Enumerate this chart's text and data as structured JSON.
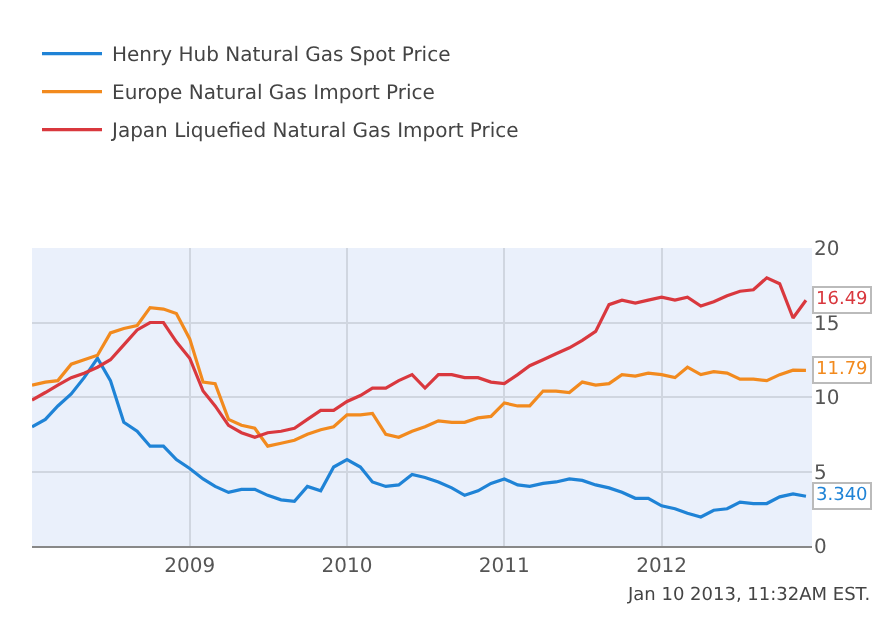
{
  "chart_data": {
    "type": "line",
    "x": [
      "2008-01",
      "2008-02",
      "2008-03",
      "2008-04",
      "2008-05",
      "2008-06",
      "2008-07",
      "2008-08",
      "2008-09",
      "2008-10",
      "2008-11",
      "2008-12",
      "2009-01",
      "2009-02",
      "2009-03",
      "2009-04",
      "2009-05",
      "2009-06",
      "2009-07",
      "2009-08",
      "2009-09",
      "2009-10",
      "2009-11",
      "2009-12",
      "2010-01",
      "2010-02",
      "2010-03",
      "2010-04",
      "2010-05",
      "2010-06",
      "2010-07",
      "2010-08",
      "2010-09",
      "2010-10",
      "2010-11",
      "2010-12",
      "2011-01",
      "2011-02",
      "2011-03",
      "2011-04",
      "2011-05",
      "2011-06",
      "2011-07",
      "2011-08",
      "2011-09",
      "2011-10",
      "2011-11",
      "2011-12",
      "2012-01",
      "2012-02",
      "2012-03",
      "2012-04",
      "2012-05",
      "2012-06",
      "2012-07",
      "2012-08",
      "2012-09",
      "2012-10",
      "2012-11",
      "2012-12"
    ],
    "series": [
      {
        "name": "Henry Hub Natural Gas Spot Price",
        "color": "#1f83d6",
        "values": [
          8.0,
          8.5,
          9.4,
          10.2,
          11.3,
          12.6,
          11.1,
          8.3,
          7.7,
          6.7,
          6.7,
          5.8,
          5.2,
          4.5,
          4.0,
          3.6,
          3.8,
          3.8,
          3.4,
          3.1,
          3.0,
          4.0,
          3.7,
          5.3,
          5.8,
          5.3,
          4.3,
          4.0,
          4.1,
          4.8,
          4.6,
          4.3,
          3.9,
          3.4,
          3.7,
          4.2,
          4.5,
          4.1,
          4.0,
          4.2,
          4.3,
          4.5,
          4.4,
          4.1,
          3.9,
          3.6,
          3.2,
          3.2,
          2.7,
          2.5,
          2.2,
          1.95,
          2.4,
          2.5,
          2.95,
          2.85,
          2.85,
          3.3,
          3.5,
          3.34
        ],
        "value_labels": [
          null,
          null,
          null,
          null,
          null,
          null,
          null,
          null,
          null,
          null,
          null,
          null,
          null,
          null,
          null,
          null,
          null,
          null,
          null,
          null,
          null,
          null,
          null,
          null,
          null,
          null,
          null,
          null,
          null,
          null,
          null,
          null,
          null,
          null,
          null,
          null,
          null,
          null,
          null,
          null,
          null,
          null,
          null,
          null,
          null,
          null,
          null,
          null,
          null,
          null,
          null,
          null,
          null,
          null,
          null,
          null,
          null,
          null,
          null,
          "3.340"
        ]
      },
      {
        "name": "Europe Natural Gas Import Price",
        "color": "#f28a1e",
        "values": [
          10.8,
          11.0,
          11.1,
          12.2,
          12.5,
          12.8,
          14.3,
          14.6,
          14.8,
          16.0,
          15.9,
          15.6,
          13.9,
          11.0,
          10.9,
          8.5,
          8.1,
          7.9,
          6.7,
          6.9,
          7.1,
          7.5,
          7.8,
          8.0,
          8.8,
          8.8,
          8.9,
          7.5,
          7.3,
          7.7,
          8.0,
          8.4,
          8.3,
          8.3,
          8.6,
          8.7,
          9.6,
          9.4,
          9.4,
          10.4,
          10.4,
          10.3,
          11.0,
          10.8,
          10.9,
          11.5,
          11.4,
          11.6,
          11.5,
          11.3,
          12.0,
          11.5,
          11.7,
          11.6,
          11.2,
          11.2,
          11.1,
          11.5,
          11.8,
          11.79
        ],
        "value_labels": [
          null,
          null,
          null,
          null,
          null,
          null,
          null,
          null,
          null,
          null,
          null,
          null,
          null,
          null,
          null,
          null,
          null,
          null,
          null,
          null,
          null,
          null,
          null,
          null,
          null,
          null,
          null,
          null,
          null,
          null,
          null,
          null,
          null,
          null,
          null,
          null,
          null,
          null,
          null,
          null,
          null,
          null,
          null,
          null,
          null,
          null,
          null,
          null,
          null,
          null,
          null,
          null,
          null,
          null,
          null,
          null,
          null,
          null,
          null,
          "11.79"
        ]
      },
      {
        "name": "Japan Liquefied Natural Gas Import Price",
        "color": "#d9383e",
        "values": [
          9.8,
          10.3,
          10.8,
          11.3,
          11.6,
          12.0,
          12.5,
          13.5,
          14.5,
          15.0,
          15.0,
          13.7,
          12.6,
          10.4,
          9.4,
          8.1,
          7.6,
          7.3,
          7.6,
          7.7,
          7.9,
          8.5,
          9.1,
          9.1,
          9.7,
          10.1,
          10.6,
          10.6,
          11.1,
          11.5,
          10.6,
          11.5,
          11.5,
          11.3,
          11.3,
          11.0,
          10.9,
          11.5,
          12.1,
          12.5,
          12.9,
          13.3,
          13.8,
          14.4,
          16.2,
          16.5,
          16.3,
          16.5,
          16.7,
          16.5,
          16.7,
          16.1,
          16.4,
          16.8,
          17.1,
          17.2,
          18.0,
          17.6,
          15.3,
          16.49
        ],
        "value_labels": [
          null,
          null,
          null,
          null,
          null,
          null,
          null,
          null,
          null,
          null,
          null,
          null,
          null,
          null,
          null,
          null,
          null,
          null,
          null,
          null,
          null,
          null,
          null,
          null,
          null,
          null,
          null,
          null,
          null,
          null,
          null,
          null,
          null,
          null,
          null,
          null,
          null,
          null,
          null,
          null,
          null,
          null,
          null,
          null,
          null,
          null,
          null,
          null,
          null,
          null,
          null,
          null,
          null,
          null,
          null,
          null,
          null,
          null,
          null,
          "16.49"
        ]
      }
    ],
    "xlim": [
      "2008-01-01",
      "2012-12-15"
    ],
    "xticks": [
      {
        "value": "2009-01-01",
        "label": "2009"
      },
      {
        "value": "2010-01-01",
        "label": "2010"
      },
      {
        "value": "2011-01-01",
        "label": "2011"
      },
      {
        "value": "2012-01-01",
        "label": "2012"
      }
    ],
    "ylim": [
      0,
      20
    ],
    "yticks": [
      0,
      5,
      10,
      15,
      20
    ],
    "grid": true,
    "legend": "top left",
    "marker": "none",
    "line_style": "solid",
    "annotations": [
      "Jan 10 2013, 11:32AM EST."
    ]
  }
}
